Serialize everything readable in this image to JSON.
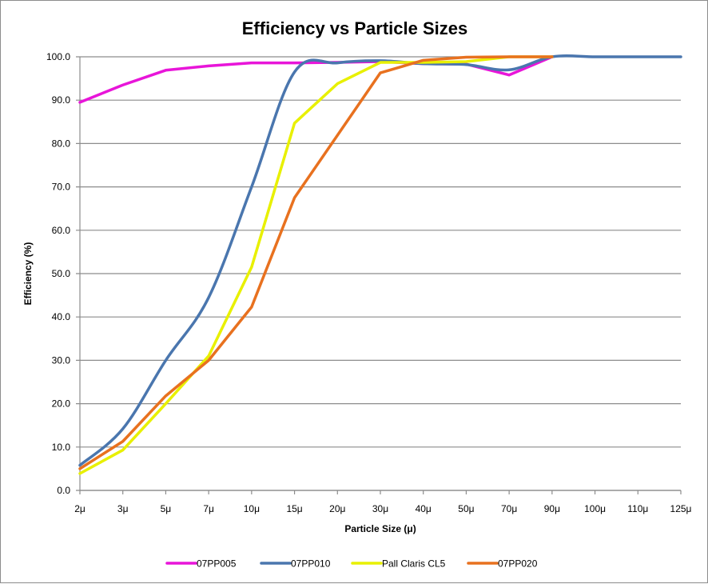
{
  "chart_data": {
    "type": "line",
    "title": "Efficiency vs Particle Sizes",
    "xlabel": "Particle Size (μ)",
    "ylabel": "Efficiency (%)",
    "ylim": [
      0,
      100
    ],
    "ytick_step": 10,
    "ytick_labels": [
      "0.0",
      "10.0",
      "20.0",
      "30.0",
      "40.0",
      "50.0",
      "60.0",
      "70.0",
      "80.0",
      "90.0",
      "100.0"
    ],
    "grid": true,
    "legend_position": "bottom",
    "categories": [
      "2μ",
      "3μ",
      "5μ",
      "7μ",
      "10μ",
      "15μ",
      "20μ",
      "30μ",
      "40μ",
      "50μ",
      "70μ",
      "90μ",
      "100μ",
      "110μ",
      "125μ"
    ],
    "series": [
      {
        "name": "07PP005",
        "color": "#E815D9",
        "smooth": false,
        "values": [
          89.5,
          93.5,
          96.9,
          97.9,
          98.6,
          98.6,
          98.7,
          98.9,
          98.4,
          98.3,
          95.8,
          100.0,
          null,
          null,
          null
        ]
      },
      {
        "name": "07PP010",
        "color": "#4A76AE",
        "smooth": true,
        "values": [
          5.8,
          14.2,
          30.0,
          44.5,
          70.0,
          96.5,
          98.6,
          99.1,
          98.4,
          98.2,
          97.0,
          100.0,
          100.0,
          100.0,
          100.0
        ]
      },
      {
        "name": "Pall Claris CL5",
        "color": "#E8F000",
        "smooth": false,
        "values": [
          3.9,
          9.3,
          20.0,
          31.0,
          51.5,
          84.7,
          93.8,
          98.7,
          98.7,
          98.9,
          100.0,
          100.0,
          null,
          null,
          null
        ]
      },
      {
        "name": "07PP020",
        "color": "#E8711F",
        "smooth": false,
        "values": [
          5.0,
          11.3,
          21.8,
          30.0,
          42.3,
          67.5,
          81.9,
          96.3,
          99.2,
          99.9,
          100.0,
          100.0,
          null,
          null,
          null
        ]
      }
    ]
  }
}
